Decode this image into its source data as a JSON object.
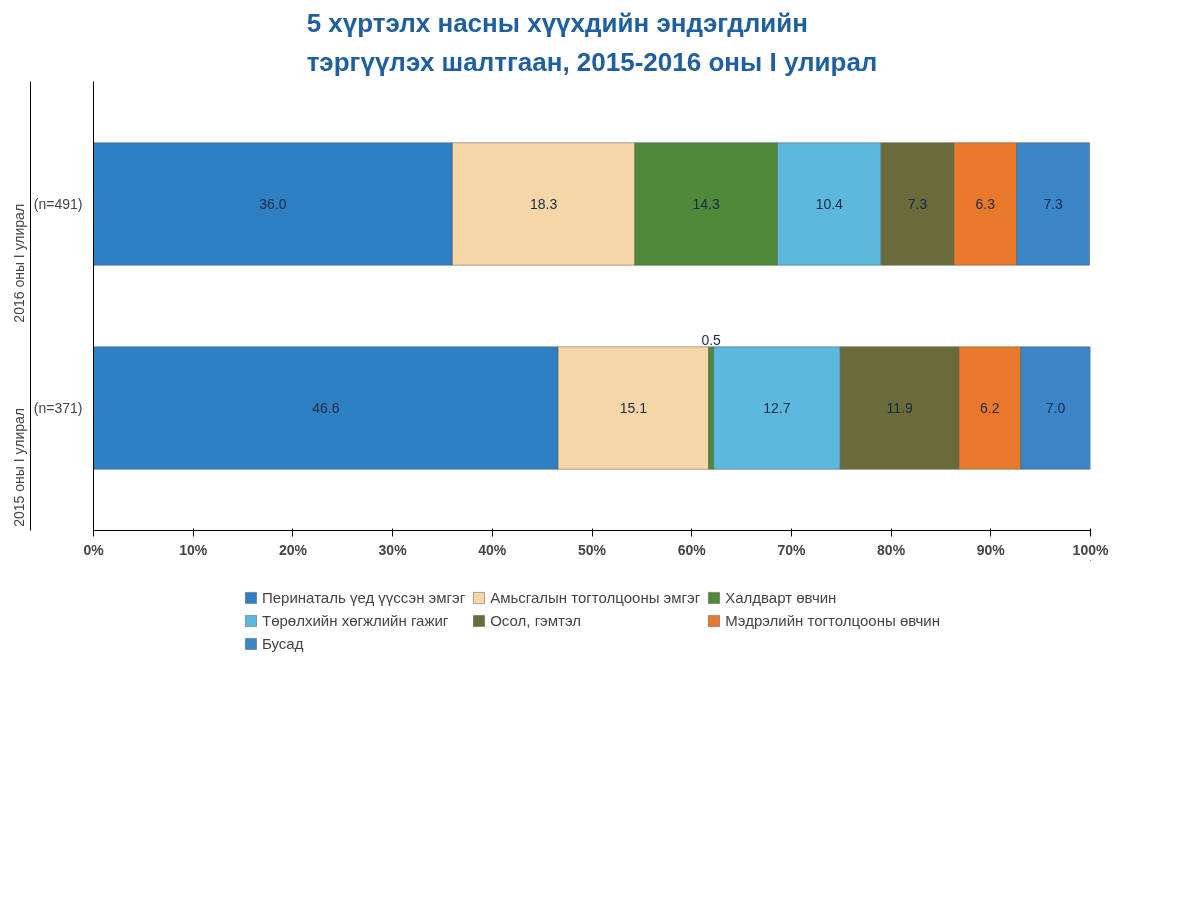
{
  "chart_data": {
    "type": "bar",
    "orientation": "horizontal",
    "stacked": true,
    "title": "5 хүртэлх насны хүүхдийн эндэгдлийн\nтэргүүлэх шалтгаан, 2015-2016 оны I улирал",
    "categories": [
      "2016 оны I улирал",
      "2015 оны I улирал"
    ],
    "annotations": [
      "(n=491)",
      "(n=371)"
    ],
    "series": [
      {
        "name": "Перинаталь үед үүссэн эмгэг",
        "color": "#2f80c3",
        "values": [
          36.0,
          46.6
        ],
        "value_labels": [
          "36.0",
          "46.6"
        ]
      },
      {
        "name": "Амьсгалын тогтолцооны эмгэг",
        "color": "#f5d6a6",
        "values": [
          18.3,
          15.1
        ],
        "value_labels": [
          "18.3",
          "15.1"
        ]
      },
      {
        "name": "Халдварт өвчин",
        "color": "#4e8a3a",
        "values": [
          14.3,
          0.5
        ],
        "value_labels": [
          "14.3",
          "0.5"
        ]
      },
      {
        "name": "Төрөлхийн хөгжлийн гажиг",
        "color": "#5cb8dc",
        "values": [
          10.4,
          12.7
        ],
        "value_labels": [
          "10.4",
          "12.7"
        ]
      },
      {
        "name": "Осол, гэмтэл",
        "color": "#6b6a3b",
        "values": [
          7.3,
          11.9
        ],
        "value_labels": [
          "7.3",
          "11.9"
        ]
      },
      {
        "name": "Мэдрэлийн тогтолцооны өвчин",
        "color": "#e8782a",
        "values": [
          6.3,
          6.2
        ],
        "value_labels": [
          "6.3",
          "6.2"
        ]
      },
      {
        "name": "Бусад",
        "color": "#3a86c6",
        "values": [
          7.3,
          7.0
        ],
        "value_labels": [
          "7.3",
          "7.0"
        ]
      }
    ],
    "xlim": [
      0,
      100
    ],
    "xticks": [
      {
        "value": 0,
        "label": "0%"
      },
      {
        "value": 10,
        "label": "10%"
      },
      {
        "value": 20,
        "label": "20%"
      },
      {
        "value": 30,
        "label": "30%"
      },
      {
        "value": 40,
        "label": "40%"
      },
      {
        "value": 50,
        "label": "50%"
      },
      {
        "value": 60,
        "label": "60%"
      },
      {
        "value": 70,
        "label": "70%"
      },
      {
        "value": 80,
        "label": "80%"
      },
      {
        "value": 90,
        "label": "90%"
      },
      {
        "value": 100,
        "label": "100%"
      }
    ],
    "grid": false,
    "legend": "bottom"
  }
}
